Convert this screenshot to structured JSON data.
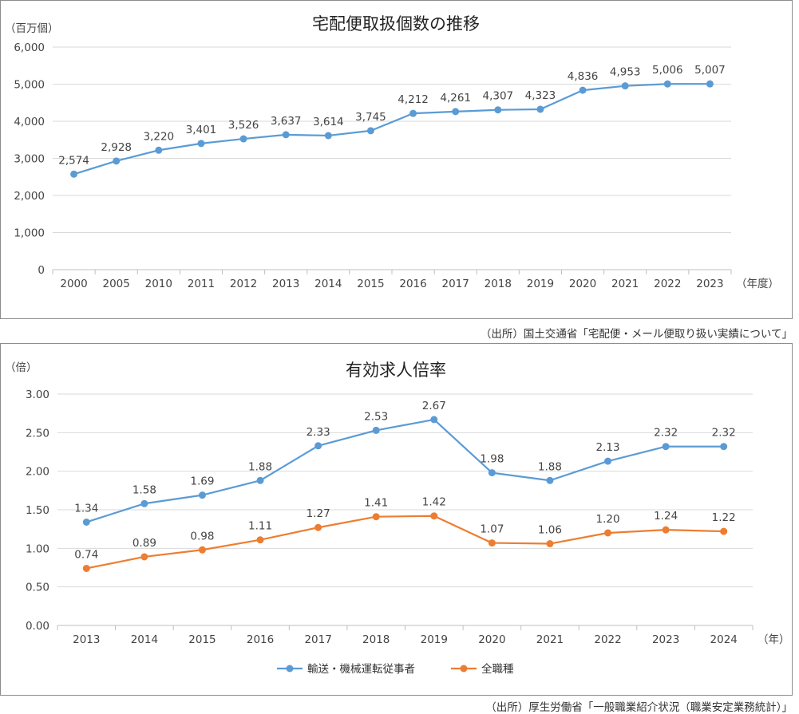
{
  "chart_data": [
    {
      "type": "line",
      "title": "宅配便取扱個数の推移",
      "ylabel": "（百万個）",
      "xlabel": "（年度）",
      "ylim": [
        0,
        6000
      ],
      "yticks": [
        "0",
        "1,000",
        "2,000",
        "3,000",
        "4,000",
        "5,000",
        "6,000"
      ],
      "grid": true,
      "categories": [
        "2000",
        "2005",
        "2010",
        "2011",
        "2012",
        "2013",
        "2014",
        "2015",
        "2016",
        "2017",
        "2018",
        "2019",
        "2020",
        "2021",
        "2022",
        "2023"
      ],
      "series": [
        {
          "color": "#5b9bd5",
          "values": [
            2574,
            2928,
            3220,
            3401,
            3526,
            3637,
            3614,
            3745,
            4212,
            4261,
            4307,
            4323,
            4836,
            4953,
            5006,
            5007
          ],
          "labels": [
            "2,574",
            "2,928",
            "3,220",
            "3,401",
            "3,526",
            "3,637",
            "3,614",
            "3,745",
            "4,212",
            "4,261",
            "4,307",
            "4,323",
            "4,836",
            "4,953",
            "5,006",
            "5,007"
          ]
        }
      ],
      "source": "（出所）国土交通省「宅配便・メール便取り扱い実績について」"
    },
    {
      "type": "line",
      "title": "有効求人倍率",
      "ylabel": "（倍）",
      "xlabel": "（年）",
      "ylim": [
        0,
        3
      ],
      "yticks": [
        "0.00",
        "0.50",
        "1.00",
        "1.50",
        "2.00",
        "2.50",
        "3.00"
      ],
      "grid": true,
      "legend": "bottom",
      "categories": [
        "2013",
        "2014",
        "2015",
        "2016",
        "2017",
        "2018",
        "2019",
        "2020",
        "2021",
        "2022",
        "2023",
        "2024"
      ],
      "series": [
        {
          "name": "輸送・機械運転従事者",
          "color": "#5b9bd5",
          "values": [
            1.34,
            1.58,
            1.69,
            1.88,
            2.33,
            2.53,
            2.67,
            1.98,
            1.88,
            2.13,
            2.32,
            2.32
          ],
          "labels": [
            "1.34",
            "1.58",
            "1.69",
            "1.88",
            "2.33",
            "2.53",
            "2.67",
            "1.98",
            "1.88",
            "2.13",
            "2.32",
            "2.32"
          ]
        },
        {
          "name": "全職種",
          "color": "#ed7d31",
          "values": [
            0.74,
            0.89,
            0.98,
            1.11,
            1.27,
            1.41,
            1.42,
            1.07,
            1.06,
            1.2,
            1.24,
            1.22
          ],
          "labels": [
            "0.74",
            "0.89",
            "0.98",
            "1.11",
            "1.27",
            "1.41",
            "1.42",
            "1.07",
            "1.06",
            "1.20",
            "1.24",
            "1.22"
          ]
        }
      ],
      "source": "（出所）厚生労働省「一般職業紹介状況（職業安定業務統計）」"
    }
  ]
}
